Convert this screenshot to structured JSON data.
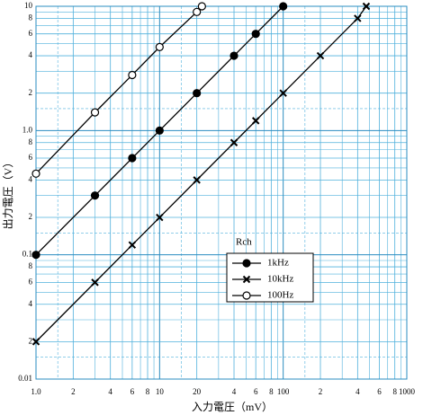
{
  "chart_data": {
    "type": "line",
    "log_x": true,
    "log_y": true,
    "grid": true,
    "xlabel": "入力電圧（mV）",
    "ylabel": "出力電圧（V）",
    "xlim": [
      1,
      1000
    ],
    "ylim": [
      0.01,
      10
    ],
    "xticks": [
      {
        "value": 1,
        "label": "1.0"
      },
      2,
      4,
      6,
      8,
      10,
      20,
      {
        "value": 40,
        "label": "4"
      },
      {
        "value": 60,
        "label": "6"
      },
      {
        "value": 80,
        "label": "8"
      },
      100,
      {
        "value": 200,
        "label": "2"
      },
      {
        "value": 400,
        "label": "4"
      },
      {
        "value": 600,
        "label": "6"
      },
      {
        "value": 800,
        "label": "8"
      },
      1000
    ],
    "yticks": [
      0.01,
      {
        "value": 0.02,
        "label": "2"
      },
      {
        "value": 0.04,
        "label": "4"
      },
      {
        "value": 0.06,
        "label": "6"
      },
      {
        "value": 0.08,
        "label": "8"
      },
      0.1,
      {
        "value": 0.2,
        "label": "2"
      },
      {
        "value": 0.4,
        "label": "4"
      },
      {
        "value": 0.6,
        "label": "6"
      },
      {
        "value": 0.8,
        "label": "8"
      },
      {
        "value": 1,
        "label": "1.0"
      },
      2,
      4,
      6,
      8,
      10
    ],
    "xminor": [
      3,
      5,
      7,
      9,
      30,
      50,
      70,
      90,
      300,
      500,
      700,
      900
    ],
    "yminor": [
      0.03,
      0.05,
      0.07,
      0.09,
      0.3,
      0.5,
      0.7,
      0.9,
      3,
      5,
      7,
      9
    ],
    "xdashed": [
      1.5,
      15,
      150
    ],
    "ydashed": [
      0.015,
      0.15,
      1.5
    ],
    "legend_title": "Rch",
    "series": [
      {
        "name": "1kHz",
        "marker": "filled-circle",
        "color": "#000000",
        "x": [
          1,
          3,
          6,
          10,
          20,
          40,
          60,
          100
        ],
        "values": [
          0.1,
          0.3,
          0.6,
          1.0,
          2,
          4,
          6,
          10
        ]
      },
      {
        "name": "10kHz",
        "marker": "cross",
        "color": "#000000",
        "x": [
          1,
          3,
          6,
          10,
          20,
          40,
          60,
          100,
          200,
          400,
          470
        ],
        "values": [
          0.02,
          0.06,
          0.12,
          0.2,
          0.4,
          0.8,
          1.2,
          2,
          4,
          8,
          10
        ]
      },
      {
        "name": "100Hz",
        "marker": "open-circle",
        "color": "#000000",
        "x": [
          1,
          3,
          6,
          10,
          20,
          22
        ],
        "values": [
          0.45,
          1.4,
          2.8,
          4.7,
          9,
          10
        ]
      }
    ]
  }
}
